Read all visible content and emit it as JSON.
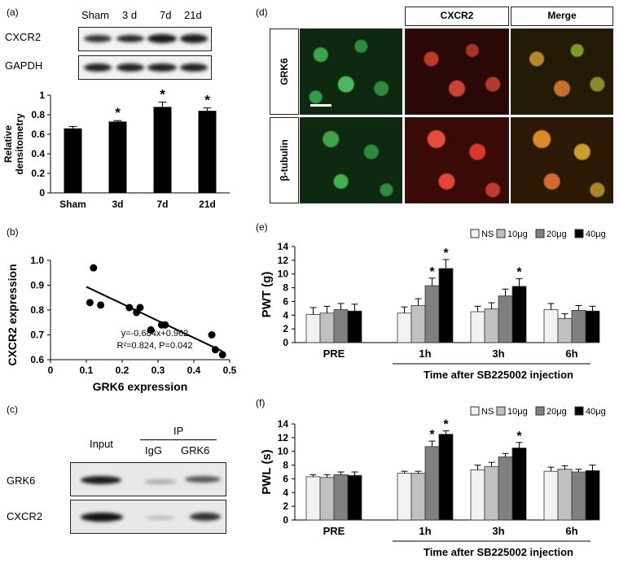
{
  "panels": {
    "a": "(a)",
    "b": "(b)",
    "c": "(c)",
    "d": "(d)",
    "e": "(e)",
    "f": "(f)"
  },
  "panel_a": {
    "lanes": [
      "Sham",
      "3 d",
      "7d",
      "21d"
    ],
    "rows": [
      "CXCR2",
      "GAPDH"
    ]
  },
  "panel_c": {
    "input": "Input",
    "ip": "IP",
    "lanes": [
      "IgG",
      "GRK6"
    ],
    "rows": [
      "GRK6",
      "CXCR2"
    ]
  },
  "panel_d": {
    "headers": [
      "CXCR2",
      "Merge"
    ],
    "rows": [
      "GRK6",
      "β-tubulin"
    ]
  },
  "colors": {
    "black": "#000000",
    "ns": "#f2f2f2",
    "c10": "#c0c0c0",
    "c20": "#808080",
    "c40": "#000000",
    "green": "#2e8b3e",
    "red": "#b3261e"
  },
  "chart_data": [
    {
      "id": "a",
      "type": "bar",
      "categories": [
        "Sham",
        "3d",
        "7d",
        "21d"
      ],
      "values": [
        0.66,
        0.73,
        0.88,
        0.84
      ],
      "errors": [
        0.02,
        0.01,
        0.05,
        0.03
      ],
      "significant": [
        false,
        true,
        true,
        true
      ],
      "ylabel": "Relative densitometry",
      "ylim": [
        0,
        1
      ],
      "yticks": [
        "0",
        "0.2",
        "0.4",
        "0.6",
        "0.8",
        "1"
      ],
      "star": "*"
    },
    {
      "id": "b",
      "type": "scatter",
      "x": [
        0.11,
        0.12,
        0.14,
        0.22,
        0.24,
        0.25,
        0.28,
        0.31,
        0.32,
        0.45,
        0.46,
        0.48
      ],
      "y": [
        0.83,
        0.97,
        0.82,
        0.81,
        0.79,
        0.81,
        0.72,
        0.74,
        0.74,
        0.7,
        0.64,
        0.62
      ],
      "fit": {
        "slope": -0.684,
        "intercept": 0.962,
        "x_range": [
          0.1,
          0.48
        ]
      },
      "annotation": [
        "y=-0.684x+0.962",
        "R²=0.824, P=0.042"
      ],
      "xlabel": "GRK6 expression",
      "ylabel": "CXCR2 expression",
      "xlim": [
        0,
        0.5
      ],
      "ylim": [
        0.6,
        1.0
      ],
      "xticks": [
        "0",
        "0.1",
        "0.2",
        "0.3",
        "0.4",
        "0.5"
      ],
      "yticks": [
        "0.6",
        "0.7",
        "0.8",
        "0.9",
        "1.0"
      ]
    },
    {
      "id": "e",
      "type": "bar",
      "categories": [
        "PRE",
        "1h",
        "3h",
        "6h"
      ],
      "series": [
        {
          "name": "NS",
          "values": [
            4.1,
            4.3,
            4.5,
            4.8
          ],
          "errors": [
            1.0,
            0.9,
            0.8,
            0.9
          ]
        },
        {
          "name": "10μg",
          "values": [
            4.3,
            5.4,
            4.9,
            3.5
          ],
          "errors": [
            1.0,
            1.0,
            0.9,
            0.7
          ]
        },
        {
          "name": "20μg",
          "values": [
            4.8,
            8.3,
            6.8,
            4.7
          ],
          "errors": [
            0.9,
            1.1,
            1.0,
            0.7
          ]
        },
        {
          "name": "40μg",
          "values": [
            4.6,
            10.8,
            8.2,
            4.6
          ],
          "errors": [
            1.0,
            1.3,
            1.1,
            0.7
          ]
        }
      ],
      "stars": [
        [
          1,
          2
        ],
        [
          1,
          3
        ],
        [
          2,
          3
        ]
      ],
      "star": "*",
      "ylabel": "PWT (g)",
      "xlabel": "Time after SB225002 injection",
      "ylim": [
        0,
        14
      ],
      "yticks": [
        "0",
        "2",
        "4",
        "6",
        "8",
        "10",
        "12",
        "14"
      ]
    },
    {
      "id": "f",
      "type": "bar",
      "categories": [
        "PRE",
        "1h",
        "3h",
        "6h"
      ],
      "series": [
        {
          "name": "NS",
          "values": [
            6.3,
            6.8,
            7.3,
            7.1
          ],
          "errors": [
            0.3,
            0.3,
            0.7,
            0.6
          ]
        },
        {
          "name": "10μg",
          "values": [
            6.2,
            6.8,
            7.8,
            7.4
          ],
          "errors": [
            0.4,
            0.3,
            0.6,
            0.5
          ]
        },
        {
          "name": "20μg",
          "values": [
            6.6,
            10.7,
            9.2,
            7.0
          ],
          "errors": [
            0.4,
            0.8,
            0.5,
            0.4
          ]
        },
        {
          "name": "40μg",
          "values": [
            6.5,
            12.5,
            10.5,
            7.2
          ],
          "errors": [
            0.5,
            0.5,
            0.8,
            0.8
          ]
        }
      ],
      "stars": [
        [
          1,
          2
        ],
        [
          1,
          3
        ],
        [
          2,
          3
        ]
      ],
      "star": "*",
      "ylabel": "PWL (s)",
      "xlabel": "Time after SB225002 injection",
      "ylim": [
        0,
        14
      ],
      "yticks": [
        "0",
        "2",
        "4",
        "6",
        "8",
        "10",
        "12",
        "14"
      ]
    }
  ]
}
